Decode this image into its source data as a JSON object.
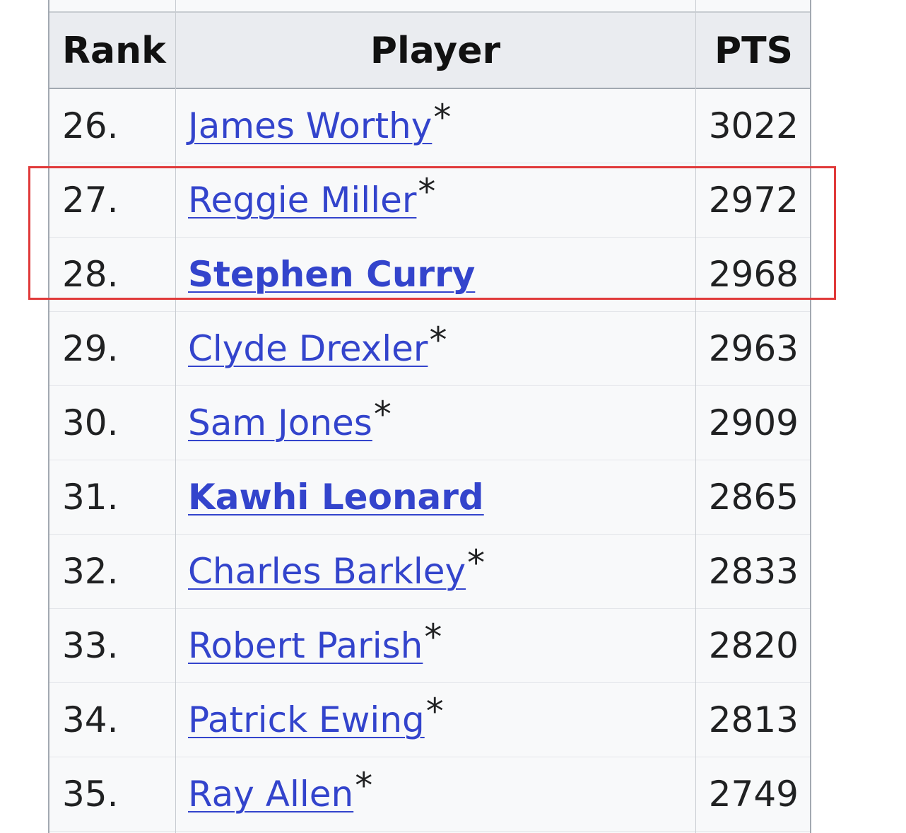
{
  "headers": {
    "rank": "Rank",
    "player": "Player",
    "pts": "PTS"
  },
  "rows": [
    {
      "rank": "26.",
      "player": "James Worthy",
      "hof": "*",
      "pts": "3022",
      "bold": false
    },
    {
      "rank": "27.",
      "player": "Reggie Miller",
      "hof": "*",
      "pts": "2972",
      "bold": false
    },
    {
      "rank": "28.",
      "player": "Stephen Curry",
      "hof": "",
      "pts": "2968",
      "bold": true
    },
    {
      "rank": "29.",
      "player": "Clyde Drexler",
      "hof": "*",
      "pts": "2963",
      "bold": false
    },
    {
      "rank": "30.",
      "player": "Sam Jones",
      "hof": "*",
      "pts": "2909",
      "bold": false
    },
    {
      "rank": "31.",
      "player": "Kawhi Leonard",
      "hof": "",
      "pts": "2865",
      "bold": true
    },
    {
      "rank": "32.",
      "player": "Charles Barkley",
      "hof": "*",
      "pts": "2833",
      "bold": false
    },
    {
      "rank": "33.",
      "player": "Robert Parish",
      "hof": "*",
      "pts": "2820",
      "bold": false
    },
    {
      "rank": "34.",
      "player": "Patrick Ewing",
      "hof": "*",
      "pts": "2813",
      "bold": false
    },
    {
      "rank": "35.",
      "player": "Ray Allen",
      "hof": "*",
      "pts": "2749",
      "bold": false
    }
  ],
  "highlight": {
    "color": "#e03a3a",
    "rows": [
      "27.",
      "28."
    ]
  },
  "colors": {
    "link": "#3344cc",
    "header_bg": "#eaecf0",
    "body_bg": "#f8f9fa"
  }
}
